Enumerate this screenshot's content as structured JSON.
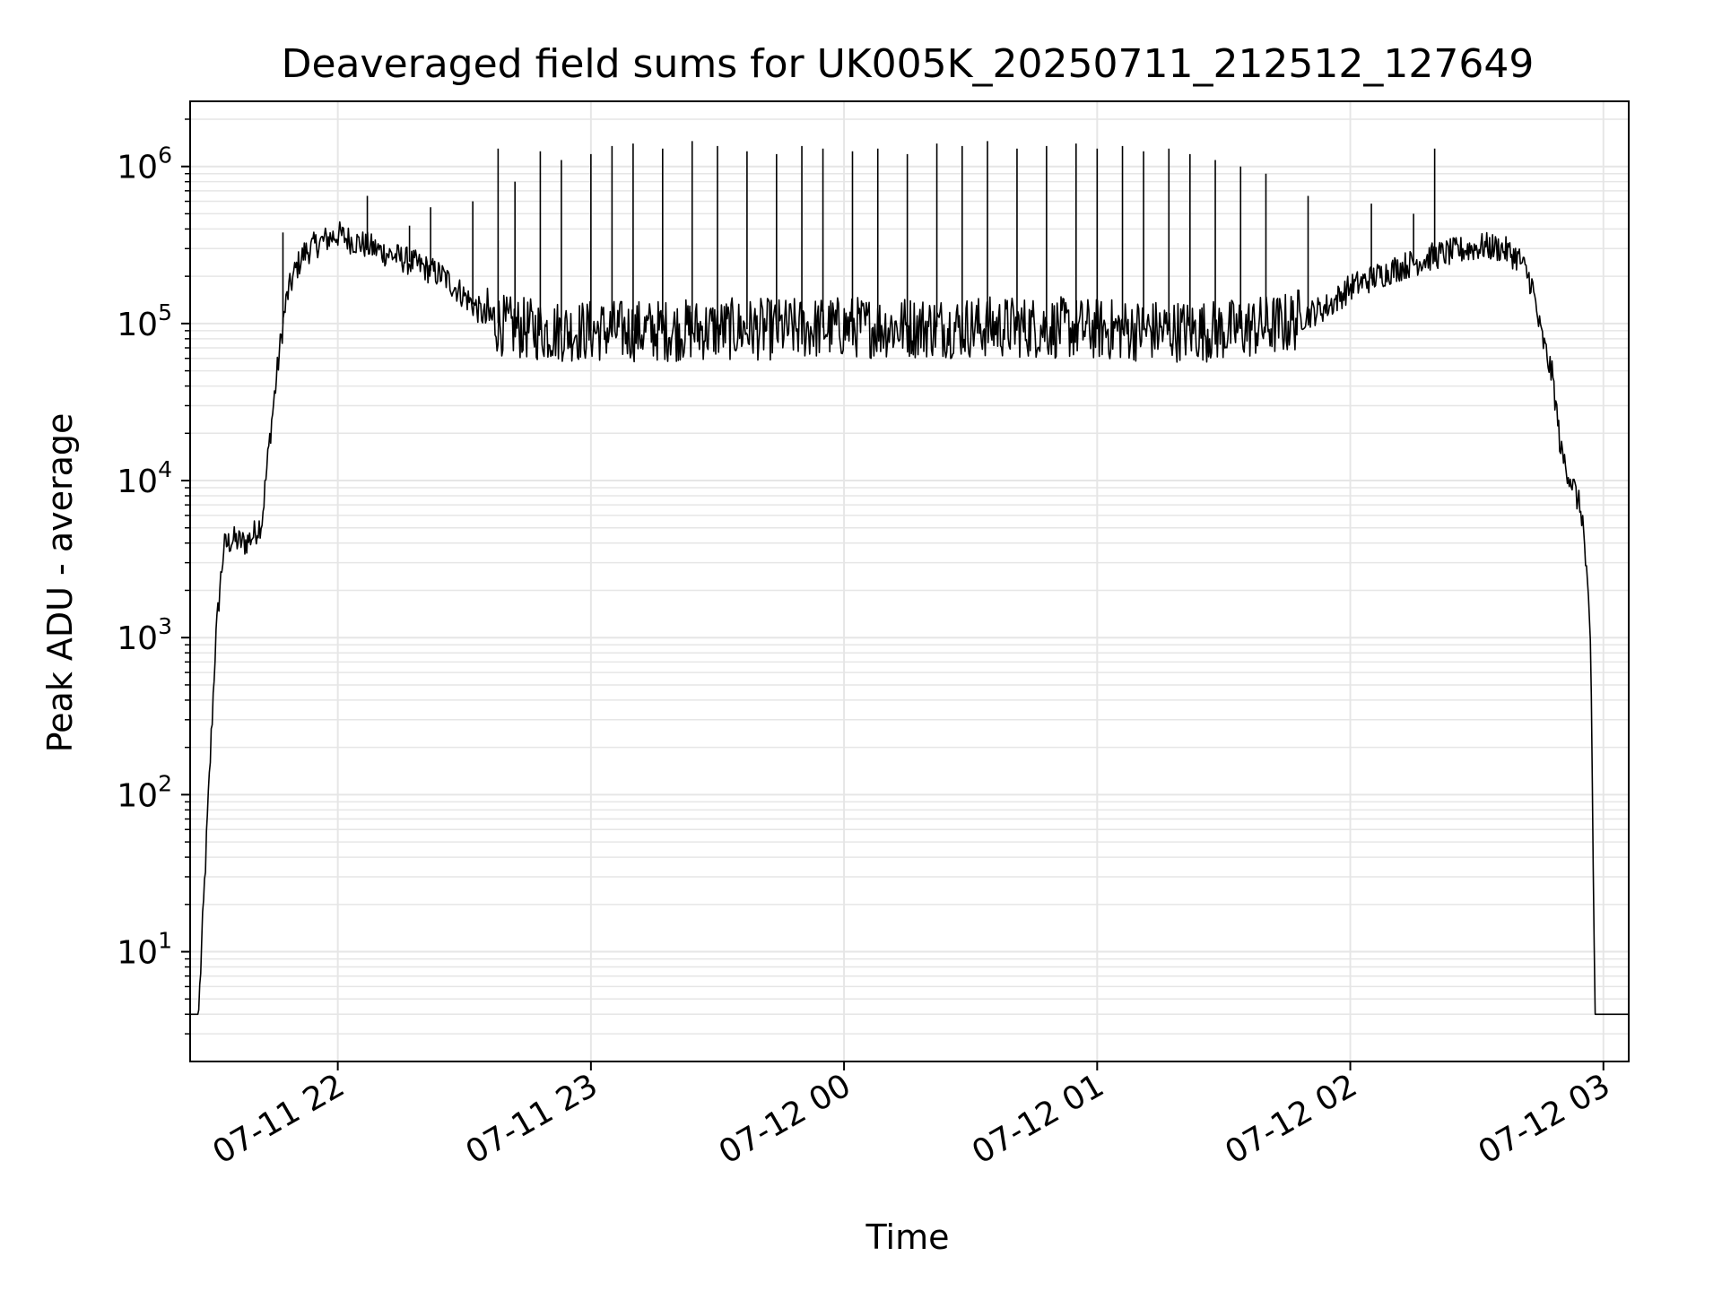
{
  "chart_data": {
    "type": "line",
    "title": "Deaveraged field sums for UK005K_20250711_212512_127649",
    "xlabel": "Time",
    "ylabel": "Peak ADU - average",
    "yscale": "log",
    "grid": true,
    "line_color": "#000000",
    "grid_color": "#e6e6e6",
    "x_ticks": [
      "07-11 22",
      "07-11 23",
      "07-12 00",
      "07-12 01",
      "07-12 02",
      "07-12 03"
    ],
    "y_ticks": [
      {
        "base": "10",
        "exp": "1",
        "value": 10
      },
      {
        "base": "10",
        "exp": "2",
        "value": 100
      },
      {
        "base": "10",
        "exp": "3",
        "value": 1000
      },
      {
        "base": "10",
        "exp": "4",
        "value": 10000
      },
      {
        "base": "10",
        "exp": "5",
        "value": 100000
      },
      {
        "base": "10",
        "exp": "6",
        "value": 1000000
      }
    ],
    "xlim": [
      "2025-07-11 21:25",
      "2025-07-12 03:06"
    ],
    "ylim": [
      2,
      2600000
    ],
    "series": [
      {
        "x": [
          "2025-07-11 21:25",
          "2025-07-11 21:27",
          "2025-07-11 21:29",
          "2025-07-11 21:31",
          "2025-07-11 21:32",
          "2025-07-11 21:33",
          "2025-07-11 21:35",
          "2025-07-11 21:38",
          "2025-07-11 21:40",
          "2025-07-11 21:42",
          "2025-07-11 21:44",
          "2025-07-11 21:46",
          "2025-07-11 21:47",
          "2025-07-11 21:48",
          "2025-07-11 21:50",
          "2025-07-11 21:52",
          "2025-07-11 21:55",
          "2025-07-11 21:58",
          "2025-07-11 22:00",
          "2025-07-11 22:03",
          "2025-07-11 22:06",
          "2025-07-11 22:10",
          "2025-07-11 22:15",
          "2025-07-11 22:20",
          "2025-07-11 22:25",
          "2025-07-11 22:30",
          "2025-07-11 22:35",
          "2025-07-11 22:40",
          "2025-07-11 22:50",
          "2025-07-11 23:00",
          "2025-07-11 23:15",
          "2025-07-11 23:30",
          "2025-07-11 23:45",
          "2025-07-12 00:00",
          "2025-07-12 00:15",
          "2025-07-12 00:30",
          "2025-07-12 00:45",
          "2025-07-12 01:00",
          "2025-07-12 01:15",
          "2025-07-12 01:30",
          "2025-07-12 01:45",
          "2025-07-12 01:55",
          "2025-07-12 02:00",
          "2025-07-12 02:10",
          "2025-07-12 02:20",
          "2025-07-12 02:28",
          "2025-07-12 02:32",
          "2025-07-12 02:36",
          "2025-07-12 02:40",
          "2025-07-12 02:43",
          "2025-07-12 02:45",
          "2025-07-12 02:48",
          "2025-07-12 02:50",
          "2025-07-12 02:53",
          "2025-07-12 02:55",
          "2025-07-12 02:56",
          "2025-07-12 02:57",
          "2025-07-12 02:58",
          "2025-07-12 03:06"
        ],
        "y": [
          4,
          4,
          60,
          900,
          2000,
          3800,
          4200,
          4000,
          4500,
          5500,
          20000,
          60000,
          100000,
          150000,
          220000,
          280000,
          320000,
          350000,
          370000,
          340000,
          320000,
          290000,
          260000,
          230000,
          200000,
          150000,
          110000,
          95000,
          90000,
          90000,
          90000,
          92000,
          92000,
          95000,
          95000,
          95000,
          95000,
          92000,
          90000,
          90000,
          100000,
          130000,
          170000,
          220000,
          270000,
          300000,
          310000,
          300000,
          260000,
          180000,
          90000,
          45000,
          15000,
          9000,
          6000,
          2500,
          800,
          4,
          4
        ]
      }
    ],
    "spikes": {
      "x": [
        "2025-07-11 21:47",
        "2025-07-11 22:07",
        "2025-07-11 22:17",
        "2025-07-11 22:22",
        "2025-07-11 22:32",
        "2025-07-11 22:38",
        "2025-07-11 22:42",
        "2025-07-11 22:48",
        "2025-07-11 22:53",
        "2025-07-11 23:00",
        "2025-07-11 23:05",
        "2025-07-11 23:10",
        "2025-07-11 23:17",
        "2025-07-11 23:24",
        "2025-07-11 23:30",
        "2025-07-11 23:37",
        "2025-07-11 23:44",
        "2025-07-11 23:50",
        "2025-07-11 23:55",
        "2025-07-12 00:02",
        "2025-07-12 00:08",
        "2025-07-12 00:15",
        "2025-07-12 00:22",
        "2025-07-12 00:28",
        "2025-07-12 00:34",
        "2025-07-12 00:41",
        "2025-07-12 00:48",
        "2025-07-12 00:55",
        "2025-07-12 01:00",
        "2025-07-12 01:06",
        "2025-07-12 01:11",
        "2025-07-12 01:17",
        "2025-07-12 01:22",
        "2025-07-12 01:28",
        "2025-07-12 01:34",
        "2025-07-12 01:40",
        "2025-07-12 01:50",
        "2025-07-12 02:05",
        "2025-07-12 02:15",
        "2025-07-12 02:20"
      ],
      "y": [
        380000,
        650000,
        420000,
        550000,
        600000,
        1300000,
        800000,
        1250000,
        1100000,
        1200000,
        1350000,
        1400000,
        1300000,
        1450000,
        1350000,
        1250000,
        1200000,
        1350000,
        1300000,
        1250000,
        1300000,
        1200000,
        1400000,
        1350000,
        1450000,
        1300000,
        1350000,
        1400000,
        1300000,
        1350000,
        1250000,
        1300000,
        1200000,
        1100000,
        1000000,
        900000,
        650000,
        580000,
        500000,
        1300000
      ]
    }
  }
}
